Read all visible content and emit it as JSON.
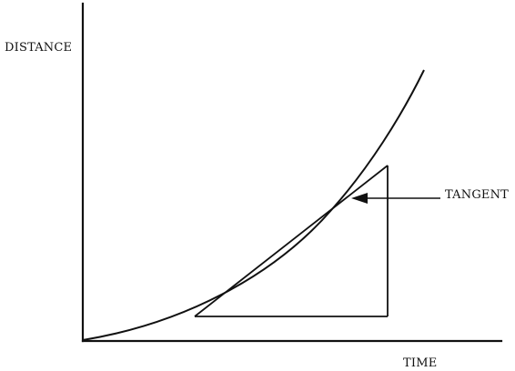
{
  "labels": {
    "y_axis": "DISTANCE",
    "x_axis": "TIME",
    "annotation": "TANGENT"
  },
  "colors": {
    "ink": "#111111",
    "background": "#ffffff"
  }
}
